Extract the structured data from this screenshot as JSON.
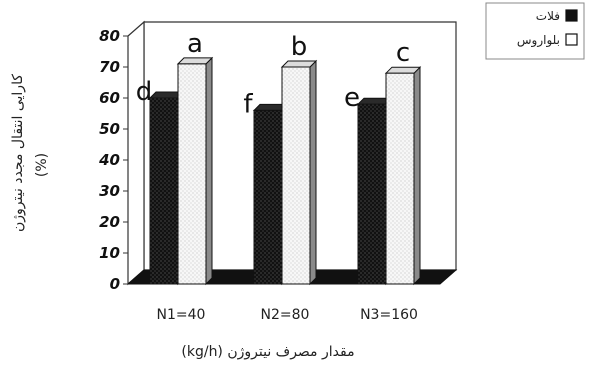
{
  "chart_data": {
    "type": "bar",
    "categories": [
      "N1=40",
      "N2=80",
      "N3=160"
    ],
    "series": [
      {
        "name": "فلات",
        "values": [
          60,
          56,
          58
        ],
        "color": "#1a1a1a",
        "pattern": "dark-dotted"
      },
      {
        "name": "بلواروس",
        "values": [
          71,
          70,
          68
        ],
        "color": "#f2f2f2",
        "pattern": "light-dotted"
      }
    ],
    "significance_labels": [
      [
        "d",
        "a"
      ],
      [
        "f",
        "b"
      ],
      [
        "e",
        "c"
      ]
    ],
    "ylim": [
      0,
      80
    ],
    "yticks": [
      "0",
      "10",
      "20",
      "30",
      "40",
      "50",
      "60",
      "70",
      "80"
    ],
    "ylabel_line1": "کارایی انتقال مجدد نیتروژن",
    "ylabel_line2": "(%)",
    "xlabel": "(kg/h) مقدار مصرف نیتروژن",
    "legend_position": "top-right",
    "style": "3d"
  }
}
